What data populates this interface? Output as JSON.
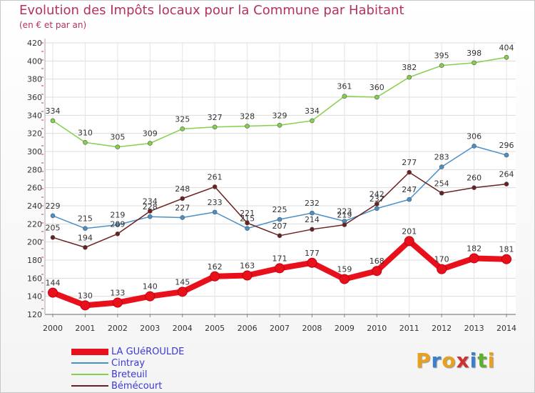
{
  "header": {
    "title": "Evolution des Impôts locaux pour la Commune par Habitant",
    "subtitle": "(en € et par an)"
  },
  "chart_data": {
    "type": "line",
    "title": "Evolution des Impôts locaux pour la Commune par Habitant",
    "subtitle": "(en € et par an)",
    "xlabel": "",
    "ylabel": "",
    "ylim": [
      120,
      420
    ],
    "y_ticks": [
      120,
      140,
      160,
      180,
      200,
      220,
      240,
      260,
      280,
      300,
      320,
      340,
      360,
      380,
      400,
      420
    ],
    "grid": true,
    "legend_position": "bottom-left",
    "categories": [
      "2000",
      "2001",
      "2002",
      "2003",
      "2004",
      "2005",
      "2006",
      "2007",
      "2008",
      "2009",
      "2010",
      "2011",
      "2012",
      "2013",
      "2014"
    ],
    "series": [
      {
        "name": "LA GUéROULDE",
        "color": "#e8111b",
        "values": [
          144,
          130,
          133,
          140,
          145,
          162,
          163,
          171,
          177,
          159,
          168,
          201,
          170,
          182,
          181
        ]
      },
      {
        "name": "Cintray",
        "color": "#4a90c8",
        "values": [
          229,
          215,
          219,
          228,
          227,
          233,
          215,
          225,
          232,
          223,
          237,
          247,
          283,
          306,
          296
        ]
      },
      {
        "name": "Breteuil",
        "color": "#84d04a",
        "values": [
          334,
          310,
          305,
          309,
          325,
          327,
          328,
          329,
          334,
          361,
          360,
          382,
          395,
          398,
          404
        ]
      },
      {
        "name": "Bémécourt",
        "color": "#6b2020",
        "values": [
          205,
          194,
          209,
          234,
          248,
          261,
          221,
          207,
          214,
          219,
          242,
          277,
          254,
          260,
          264
        ]
      }
    ]
  },
  "logo": {
    "letters": [
      "P",
      "r",
      "o",
      "x",
      "i",
      "t",
      "i"
    ],
    "colors": [
      "#e8a020",
      "#3a7fd0",
      "#e8a020",
      "#d03030",
      "#3a7fd0",
      "#60b030",
      "#e8a020"
    ]
  }
}
